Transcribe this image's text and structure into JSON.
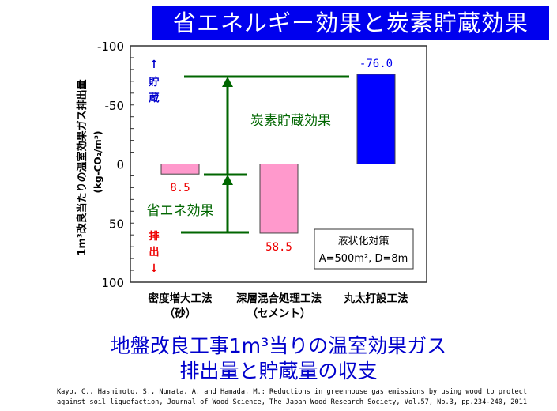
{
  "title": "省エネルギー効果と炭素貯蔵効果",
  "subtitle_line1": "地盤改良工事1m³当りの温室効果ガス",
  "subtitle_line2": "排出量と貯蔵量の収支",
  "citation_line1": "Kayo, C., Hashimoto, S., Numata, A. and Hamada, M.: Reductions in greenhouse gas emissions by using wood to protect",
  "citation_line2": "against soil liquefaction, Journal of Wood Science, The Japan Wood Research Society, Vol.57, No.3, pp.234-240, 2011",
  "chart_data": {
    "type": "bar",
    "ylabel": "1m³改良当たりの温室効果ガス排出量 (kg-CO₂/m³)",
    "ylim": [
      -100,
      100
    ],
    "yticks": [
      -100,
      -50,
      0,
      50,
      100
    ],
    "ytick_labels": [
      "-100",
      "-50",
      "0",
      "50",
      "100"
    ],
    "categories": [
      [
        "密度増大工法",
        "（砂）"
      ],
      [
        "深層混合処理工法",
        "（セメント）"
      ],
      [
        "丸太打設工法",
        ""
      ]
    ],
    "values": [
      8.5,
      58.5,
      -76.0
    ],
    "value_labels": [
      "8.5",
      "58.5",
      "-76.0"
    ],
    "bar_colors": [
      "#ff99cc",
      "#ff99cc",
      "#0000ff"
    ],
    "value_label_colors": [
      "#ee0000",
      "#ee0000",
      "#0000ee"
    ],
    "annotations": {
      "storage_arrow": "↑",
      "storage_label": [
        "貯",
        "蔵"
      ],
      "emission_label": [
        "排",
        "出"
      ],
      "emission_arrow": "↓",
      "carbon_effect": "炭素貯蔵効果",
      "energy_effect": "省エネ効果",
      "legend_line1": "液状化対策",
      "legend_line2": "A=500m², D=8m"
    },
    "colors": {
      "annotation_green": "#006600",
      "storage": "#0000cc",
      "emission": "#ee0000"
    }
  }
}
